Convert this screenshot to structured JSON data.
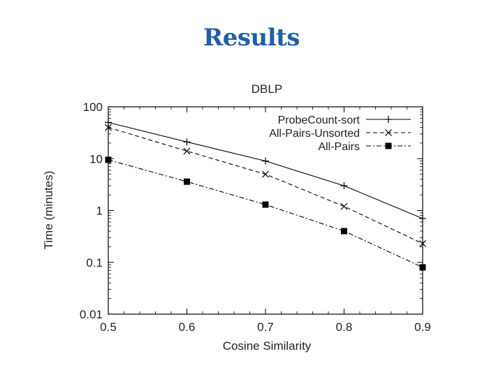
{
  "slide": {
    "title": "Results"
  },
  "chart_data": {
    "type": "line",
    "title": "DBLP",
    "xlabel": "Cosine Similarity",
    "ylabel": "Time (minutes)",
    "xlim": [
      0.5,
      0.9
    ],
    "ylim": [
      0.01,
      100
    ],
    "y_scale": "log",
    "x_ticks": [
      0.5,
      0.6,
      0.7,
      0.8,
      0.9
    ],
    "x_tick_labels": [
      "0.5",
      "0.6",
      "0.7",
      "0.8",
      "0.9"
    ],
    "y_ticks": [
      0.01,
      0.1,
      1,
      10,
      100
    ],
    "y_tick_labels": [
      "0.01",
      "0.1",
      "1",
      "10",
      "100"
    ],
    "grid": false,
    "legend_position": "top-right",
    "x": [
      0.5,
      0.6,
      0.7,
      0.8,
      0.9
    ],
    "series": [
      {
        "name": "ProbeCount-sort",
        "marker": "plus",
        "line": "solid",
        "values": [
          50,
          21,
          9,
          3,
          0.7
        ]
      },
      {
        "name": "All-Pairs-Unsorted",
        "marker": "x",
        "line": "dashed",
        "values": [
          40,
          14,
          5,
          1.2,
          0.23
        ]
      },
      {
        "name": "All-Pairs",
        "marker": "square",
        "line": "dashdot",
        "values": [
          9.5,
          3.6,
          1.3,
          0.4,
          0.08
        ]
      }
    ]
  }
}
